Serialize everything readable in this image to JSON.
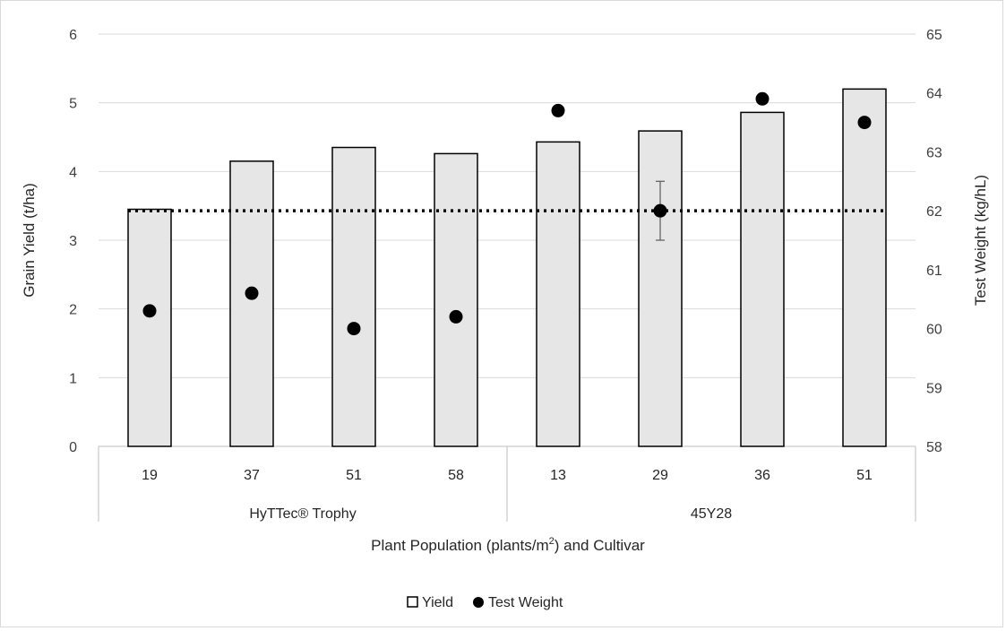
{
  "chart_data": {
    "type": "bar",
    "categories": [
      "19",
      "37",
      "51",
      "58",
      "13",
      "29",
      "36",
      "51"
    ],
    "groups": [
      {
        "label": "HyTTec® Trophy",
        "count": 4
      },
      {
        "label": "45Y28",
        "count": 4
      }
    ],
    "xlabel_parts": {
      "before": "Plant Population (plants/m",
      "sup": "2",
      "after": ") and Cultivar"
    },
    "ylabel": "Grain Yield (t/ha)",
    "y2label": "Test Weight (kg/hL)",
    "ylim": [
      0,
      6
    ],
    "y2lim": [
      58,
      65
    ],
    "yticks": [
      "0",
      "1",
      "2",
      "3",
      "4",
      "5",
      "6"
    ],
    "y2ticks": [
      "58",
      "59",
      "60",
      "61",
      "62",
      "63",
      "64",
      "65"
    ],
    "grid": true,
    "legend_placement": "bottom",
    "series": [
      {
        "name": "Yield",
        "type": "bar",
        "axis": "left",
        "values": [
          3.45,
          4.15,
          4.35,
          4.26,
          4.43,
          4.59,
          4.86,
          5.2
        ],
        "fill": "#e7e6e6",
        "stroke": "#000000"
      },
      {
        "name": "Test Weight",
        "type": "scatter",
        "axis": "right",
        "values": [
          60.3,
          60.6,
          60.0,
          60.2,
          63.7,
          62.0,
          63.9,
          63.5
        ],
        "color": "#000000",
        "error_bars": [
          {
            "index": 5,
            "low": 61.5,
            "high": 62.5
          }
        ]
      }
    ],
    "reference_line": {
      "axis": "right",
      "value": 62.0,
      "style": "dotted",
      "color": "#000000"
    }
  },
  "legend": [
    {
      "label": "Yield",
      "icon": "hollow-square-icon"
    },
    {
      "label": "Test Weight",
      "icon": "filled-circle-icon"
    }
  ]
}
